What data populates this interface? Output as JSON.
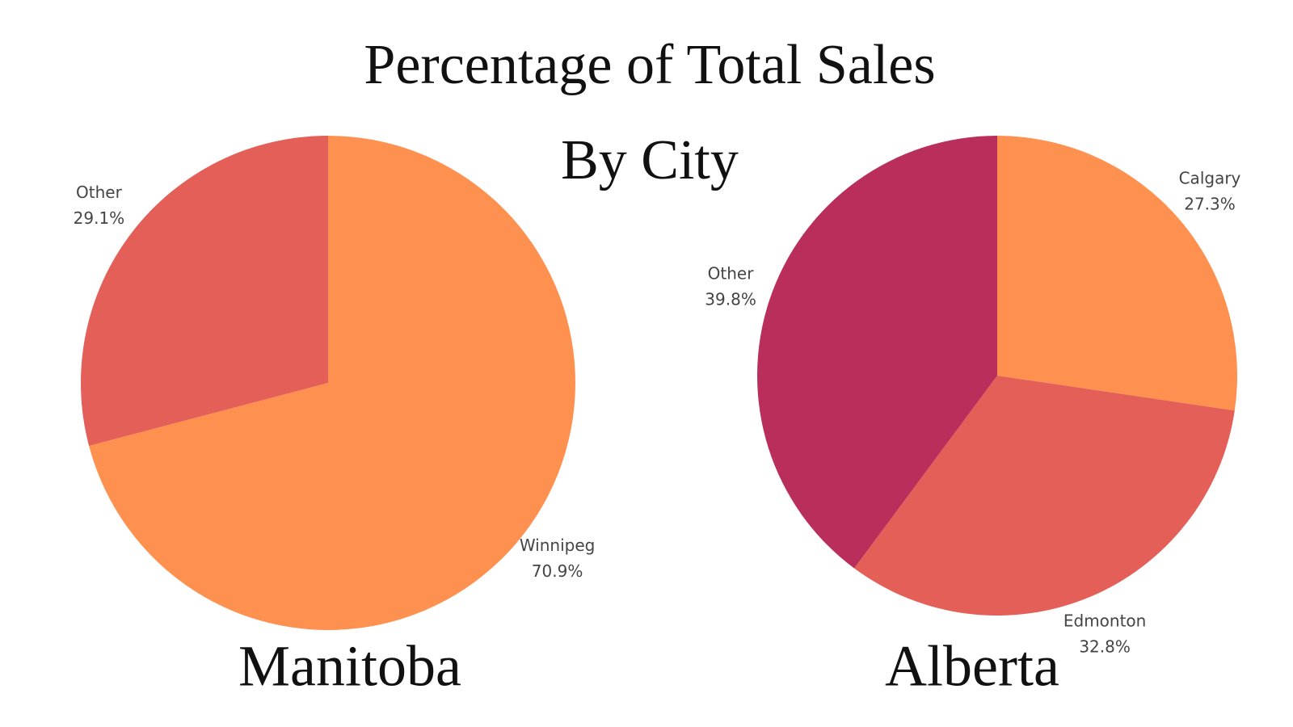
{
  "title": "Percentage of Total Sales",
  "subtitle": "By City",
  "chart_data": [
    {
      "type": "pie",
      "title": "Manitoba",
      "categories": [
        "Winnipeg",
        "Other"
      ],
      "values": [
        70.9,
        29.1
      ],
      "value_labels": [
        "70.9%",
        "29.1%"
      ],
      "colors": [
        "#fe914f",
        "#e35f58"
      ]
    },
    {
      "type": "pie",
      "title": "Alberta",
      "categories": [
        "Calgary",
        "Edmonton",
        "Other"
      ],
      "values": [
        27.3,
        32.8,
        39.8
      ],
      "value_labels": [
        "27.3%",
        "32.8%",
        "39.8%"
      ],
      "colors": [
        "#fe914f",
        "#e35f58",
        "#b92e5a"
      ]
    }
  ]
}
